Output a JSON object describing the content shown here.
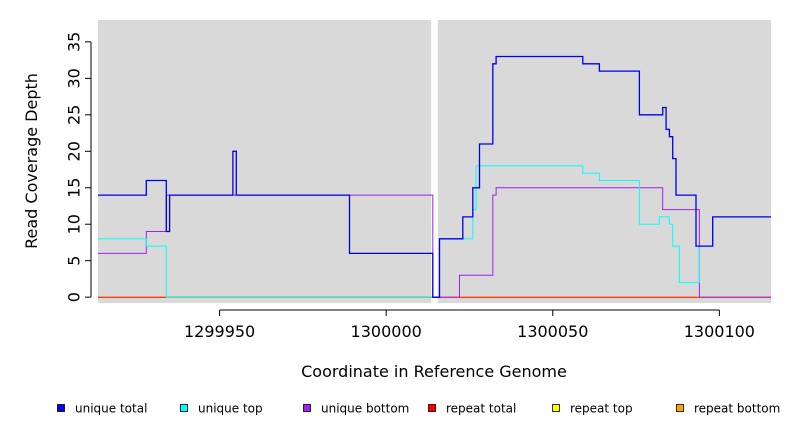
{
  "chart_data": {
    "type": "line",
    "title": "",
    "xlabel": "Coordinate in Reference Genome",
    "ylabel": "Read Coverage Depth",
    "xlim": [
      1299913.5,
      1300115.5
    ],
    "ylim": [
      -0.8,
      38
    ],
    "x_ticks": [
      1299950,
      1300000,
      1300050,
      1300100
    ],
    "x_tick_labels": [
      "1299950",
      "1300000",
      "1300050",
      "1300100"
    ],
    "y_ticks": [
      0,
      5,
      10,
      15,
      20,
      25,
      30,
      35
    ],
    "y_tick_labels": [
      "0",
      "5",
      "10",
      "15",
      "20",
      "25",
      "30",
      "35"
    ],
    "gap": [
      1300013.5,
      1300015.5
    ],
    "background": "#d9d9d9",
    "legend_position": "bottom",
    "step": true,
    "series": [
      {
        "name": "unique total",
        "color": "#0000ee",
        "x": [
          1299913.5,
          1299928,
          1299934,
          1299935,
          1299954,
          1299955,
          1299989,
          1300014,
          1300016,
          1300023,
          1300026,
          1300028,
          1300032,
          1300033,
          1300059,
          1300064,
          1300076,
          1300083,
          1300084,
          1300085,
          1300086,
          1300087,
          1300089,
          1300093,
          1300098,
          1300115.5
        ],
        "y": [
          14,
          16,
          9,
          14,
          20,
          14,
          6,
          0,
          8,
          11,
          15,
          21,
          32,
          33,
          32,
          31,
          25,
          26,
          23,
          22,
          19,
          14,
          14,
          7,
          11,
          11
        ]
      },
      {
        "name": "unique top",
        "color": "#00ffff",
        "x": [
          1299913.5,
          1299928,
          1299934,
          1300014,
          1300016,
          1300026,
          1300027,
          1300028,
          1300059,
          1300064,
          1300076,
          1300082,
          1300085,
          1300086,
          1300088,
          1300094,
          1300098,
          1300115.5
        ],
        "y": [
          8,
          7,
          0,
          0,
          8,
          12,
          18,
          18,
          17,
          16,
          10,
          11,
          10,
          7,
          2,
          7,
          11,
          11
        ]
      },
      {
        "name": "unique bottom",
        "color": "#a020f0",
        "x": [
          1299913.5,
          1299928,
          1299934,
          1300014,
          1300022,
          1300032,
          1300033,
          1300083,
          1300094,
          1300115.5
        ],
        "y": [
          6,
          9,
          14,
          0,
          3,
          14,
          15,
          12,
          0,
          0
        ]
      },
      {
        "name": "repeat total",
        "color": "#ff0000",
        "x": [
          1299913.5,
          1300115.5
        ],
        "y": [
          0,
          0
        ]
      },
      {
        "name": "repeat top",
        "color": "#ffff00",
        "x": [
          1299913.5,
          1300115.5
        ],
        "y": [
          0,
          0
        ]
      },
      {
        "name": "repeat bottom",
        "color": "#ffa500",
        "x": [
          1299913.5,
          1300115.5
        ],
        "y": [
          0,
          0
        ]
      }
    ]
  }
}
